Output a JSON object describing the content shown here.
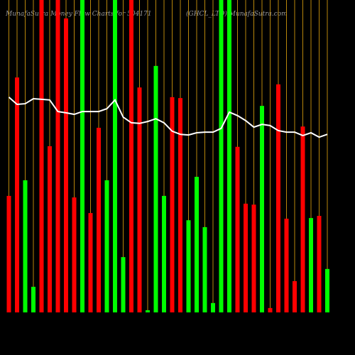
{
  "chart_data": {
    "type": "bar",
    "title": "MunafaSutra  Money Flow Charts for 504171",
    "subtitle": "(GHCL_LTD) MunafaSutra.com",
    "ylim": [
      0,
      100
    ],
    "bar_colors": [
      "#ff0000",
      "#ff0000",
      "#00ff00",
      "#00ff00",
      "#ff0000",
      "#ff0000",
      "#ff0000",
      "#ff0000",
      "#ff0000",
      "#00ff00",
      "#ff0000",
      "#ff0000",
      "#00ff00",
      "#00ff00",
      "#00ff00",
      "#ff0000",
      "#ff0000",
      "#00ff00",
      "#00ff00",
      "#00ff00",
      "#ff0000",
      "#ff0000",
      "#00ff00",
      "#00ff00",
      "#00ff00",
      "#00ff00",
      "#00ff00",
      "#00ff00",
      "#ff0000",
      "#ff0000",
      "#ff0000",
      "#00ff00",
      "#ff0000",
      "#ff0000",
      "#ff0000",
      "#ff0000",
      "#ff0000",
      "#00ff00",
      "#ff0000",
      "#00ff00"
    ],
    "values": [
      37.3,
      75.2,
      42.3,
      8.2,
      100,
      53.2,
      100,
      94.1,
      36.8,
      100,
      31.8,
      59.1,
      42.3,
      100,
      17.7,
      100,
      72.0,
      0.7,
      78.9,
      37.3,
      68.9,
      68.6,
      29.5,
      43.4,
      27.3,
      3.0,
      100,
      100,
      53.0,
      34.8,
      34.5,
      66.1,
      1.4,
      73.0,
      30.0,
      10.0,
      59.5,
      30.2,
      30.9,
      13.9
    ],
    "line": {
      "color": "#ffffff",
      "values": [
        68.9,
        66.6,
        66.8,
        68.4,
        68.2,
        68.0,
        64.3,
        63.9,
        63.4,
        64.3,
        64.3,
        64.3,
        65.2,
        68.0,
        62.5,
        60.7,
        60.5,
        61.1,
        62.0,
        60.7,
        58.0,
        57.0,
        56.8,
        57.5,
        57.7,
        57.7,
        58.9,
        64.1,
        63.0,
        61.4,
        59.3,
        60.2,
        59.8,
        58.2,
        57.7,
        57.7,
        56.6,
        57.5,
        56.1,
        57.0
      ]
    },
    "gridline_color": "#b8860b"
  }
}
